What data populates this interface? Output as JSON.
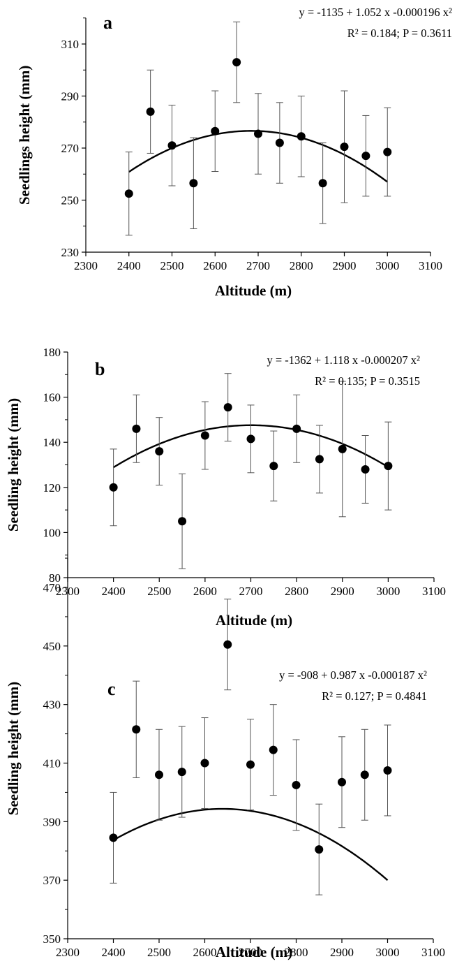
{
  "chart_data": [
    {
      "panel_label": "a",
      "type": "scatter",
      "xlabel": "Altitude (m)",
      "ylabel": "Seedlings height (mm)",
      "xlim": [
        2300,
        3100
      ],
      "ylim": [
        230,
        320
      ],
      "xticks": [
        2300,
        2400,
        2500,
        2600,
        2700,
        2800,
        2900,
        3000,
        3100
      ],
      "yticks": [
        230,
        250,
        270,
        290,
        310
      ],
      "equation": "y = -1135 + 1.052 x -0.000196 x²",
      "stats": "R² = 0.184; P = 0.3611",
      "points": [
        {
          "x": 2400,
          "y": 252.5,
          "err": 16
        },
        {
          "x": 2450,
          "y": 284,
          "err": 16
        },
        {
          "x": 2500,
          "y": 271,
          "err": 15.5
        },
        {
          "x": 2550,
          "y": 256.5,
          "err": 17.5
        },
        {
          "x": 2600,
          "y": 276.5,
          "err": 15.5
        },
        {
          "x": 2650,
          "y": 303,
          "err": 15.5
        },
        {
          "x": 2700,
          "y": 275.5,
          "err": 15.5
        },
        {
          "x": 2750,
          "y": 272,
          "err": 15.5
        },
        {
          "x": 2800,
          "y": 274.5,
          "err": 15.5
        },
        {
          "x": 2850,
          "y": 256.5,
          "err": 15.5
        },
        {
          "x": 2900,
          "y": 270.5,
          "err": 21.5
        },
        {
          "x": 2950,
          "y": 267,
          "err": 15.5
        },
        {
          "x": 3000,
          "y": 268.5,
          "err": 17
        }
      ],
      "fit": {
        "a": -1135,
        "b": 1.052,
        "c": -0.000196,
        "x_range": [
          2400,
          3000
        ]
      }
    },
    {
      "panel_label": "b",
      "type": "scatter",
      "xlabel": "Altitude (m)",
      "ylabel": "Seedling height (mm)",
      "xlim": [
        2300,
        3100
      ],
      "ylim": [
        80,
        180
      ],
      "xticks": [
        2300,
        2400,
        2500,
        2600,
        2700,
        2800,
        2900,
        3000,
        3100
      ],
      "yticks": [
        80,
        100,
        120,
        140,
        160,
        180
      ],
      "equation": "y = -1362 + 1.118 x -0.000207 x²",
      "stats": "R² = 0.135; P = 0.3515",
      "points": [
        {
          "x": 2400,
          "y": 120,
          "err": 17
        },
        {
          "x": 2450,
          "y": 146,
          "err": 15
        },
        {
          "x": 2500,
          "y": 136,
          "err": 15
        },
        {
          "x": 2550,
          "y": 105,
          "err": 21
        },
        {
          "x": 2600,
          "y": 143,
          "err": 15
        },
        {
          "x": 2650,
          "y": 155.5,
          "err": 15
        },
        {
          "x": 2700,
          "y": 141.5,
          "err": 15
        },
        {
          "x": 2750,
          "y": 129.5,
          "err": 15.5
        },
        {
          "x": 2800,
          "y": 146,
          "err": 15
        },
        {
          "x": 2850,
          "y": 132.5,
          "err": 15
        },
        {
          "x": 2900,
          "y": 137,
          "err": 30
        },
        {
          "x": 2950,
          "y": 128,
          "err": 15
        },
        {
          "x": 3000,
          "y": 129.5,
          "err": 19.5
        }
      ],
      "fit": {
        "a": -1362,
        "b": 1.118,
        "c": -0.000207,
        "x_range": [
          2400,
          3000
        ]
      }
    },
    {
      "panel_label": "c",
      "type": "scatter",
      "xlabel": "Altitude (m)",
      "ylabel": "Seedling height (mm)",
      "xlim": [
        2300,
        3100
      ],
      "ylim": [
        350,
        480
      ],
      "xticks": [
        2300,
        2400,
        2500,
        2600,
        2700,
        2800,
        2900,
        3000,
        3100
      ],
      "yticks": [
        350,
        370,
        390,
        410,
        430,
        450,
        470
      ],
      "equation": "y = -908 + 0.987 x -0.000187 x²",
      "stats": "R² = 0.127; P = 0.4841",
      "points": [
        {
          "x": 2400,
          "y": 384.5,
          "err": 15.5
        },
        {
          "x": 2450,
          "y": 421.5,
          "err": 16.5
        },
        {
          "x": 2500,
          "y": 406,
          "err": 15.5
        },
        {
          "x": 2550,
          "y": 407,
          "err": 15.5
        },
        {
          "x": 2600,
          "y": 410,
          "err": 15.5
        },
        {
          "x": 2650,
          "y": 450.5,
          "err": 15.5
        },
        {
          "x": 2700,
          "y": 409.5,
          "err": 15.5
        },
        {
          "x": 2750,
          "y": 414.5,
          "err": 15.5
        },
        {
          "x": 2800,
          "y": 402.5,
          "err": 15.5
        },
        {
          "x": 2850,
          "y": 380.5,
          "err": 15.5
        },
        {
          "x": 2900,
          "y": 403.5,
          "err": 15.5
        },
        {
          "x": 2950,
          "y": 406,
          "err": 15.5
        },
        {
          "x": 3000,
          "y": 407.5,
          "err": 15.5
        }
      ],
      "fit": {
        "a": -908,
        "b": 0.987,
        "c": -0.000187,
        "x_range": [
          2400,
          3000
        ]
      }
    }
  ]
}
